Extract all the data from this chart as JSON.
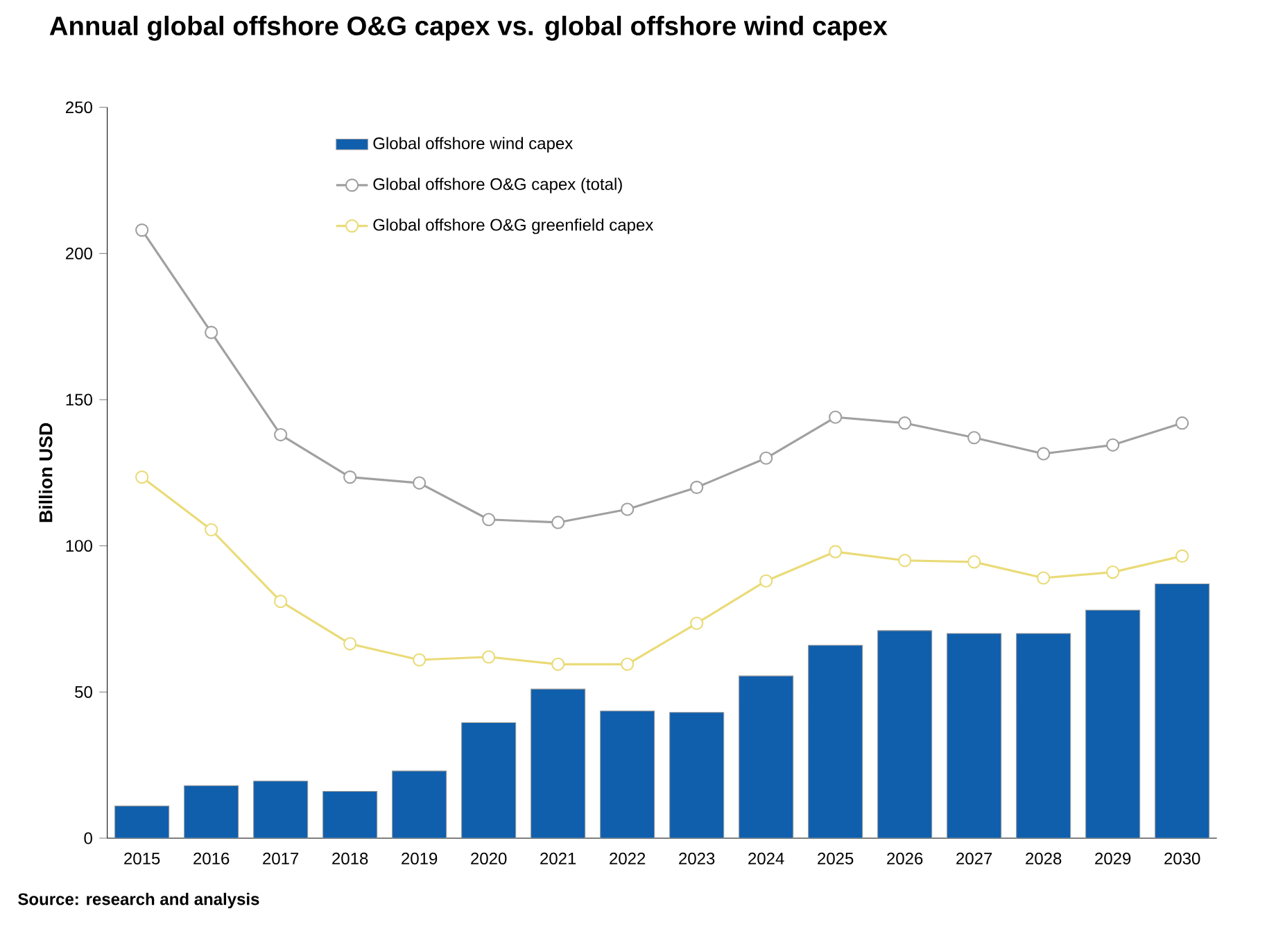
{
  "chart_data": {
    "type": "bar",
    "title": "Annual global offshore O&G capex vs. global offshore wind capex",
    "ylabel": "Billion USD",
    "categories": [
      "2015",
      "2016",
      "2017",
      "2018",
      "2019",
      "2020",
      "2021",
      "2022",
      "2023",
      "2024",
      "2025",
      "2026",
      "2027",
      "2028",
      "2029",
      "2030"
    ],
    "series": [
      {
        "name": "Global offshore wind capex",
        "color": "#0f5fad",
        "values": [
          11,
          18,
          19.5,
          16,
          23,
          39.5,
          51,
          43.5,
          43,
          55.5,
          66,
          71,
          70,
          70,
          78,
          87
        ]
      },
      {
        "name": "Global offshore O&G capex (total)",
        "type": "line",
        "color": "#a0a0a0",
        "marker": "circle",
        "line_style": "solid",
        "values": [
          208,
          173,
          138,
          123.5,
          121.5,
          109,
          108,
          112.5,
          120,
          130,
          144,
          142,
          137,
          131.5,
          134.5,
          142
        ]
      },
      {
        "name": "Global offshore O&G greenfield capex",
        "type": "line",
        "color": "#eadb78",
        "marker": "circle",
        "line_style": "solid",
        "values": [
          123.5,
          105.5,
          81,
          66.5,
          61,
          62,
          59.5,
          59.5,
          73.5,
          88,
          98,
          95,
          94.5,
          89,
          91,
          96.5
        ]
      }
    ],
    "ylim": [
      0,
      250
    ],
    "yticks": [
      0,
      50,
      100,
      150,
      200,
      250
    ],
    "grid": false,
    "legend": "top left",
    "annotations": [
      "Source: research and analysis"
    ]
  }
}
